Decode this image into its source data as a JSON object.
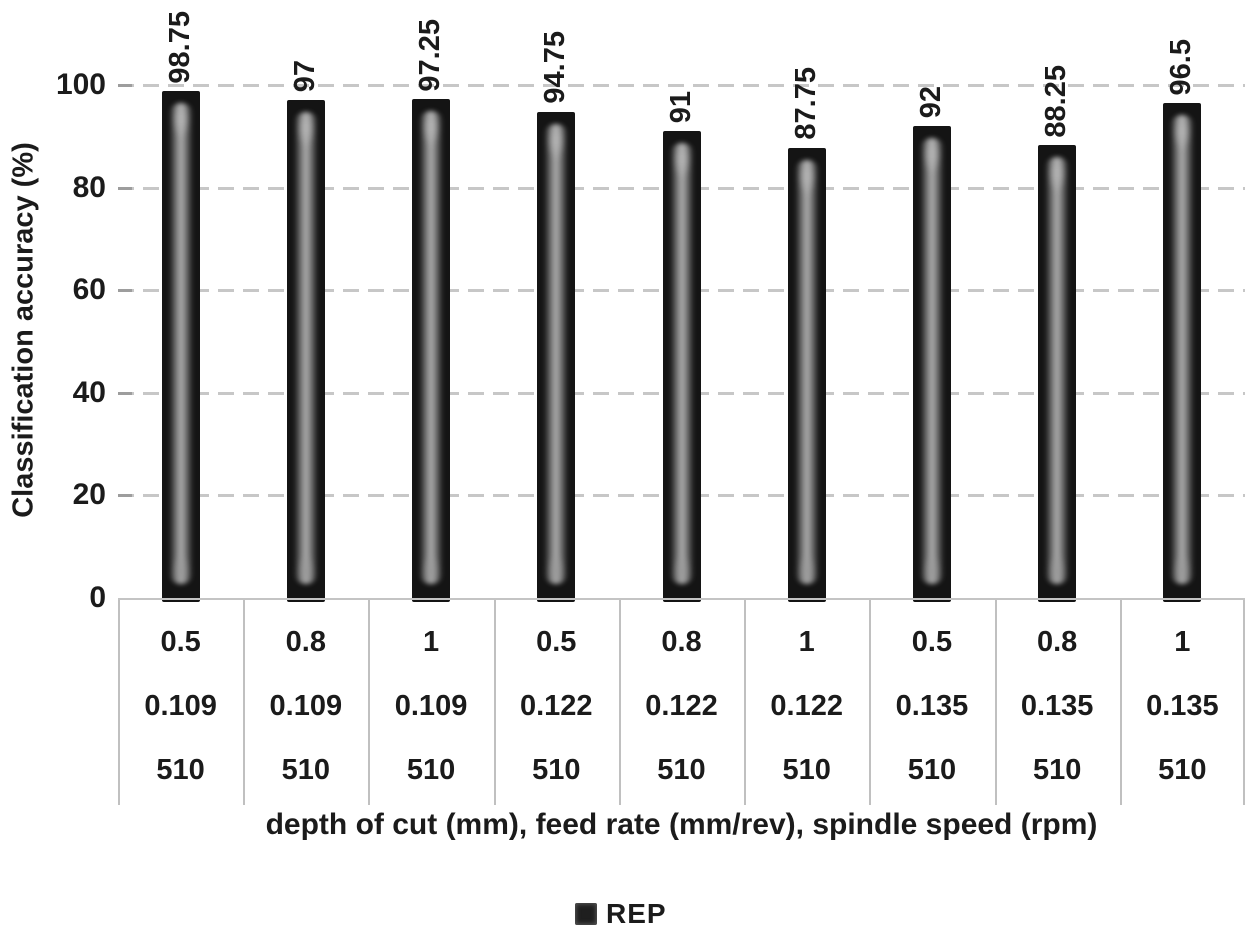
{
  "chart_data": {
    "type": "bar",
    "title": "",
    "ylabel": "Classification accuracy (%)",
    "xlabel": "depth of cut (mm), feed rate (mm/rev), spindle speed (rpm)",
    "ylim": [
      0,
      100
    ],
    "yticks": [
      0,
      20,
      40,
      60,
      80,
      100
    ],
    "grid": "horizontal-dashed",
    "legend_position": "bottom-center",
    "categories": [
      {
        "depth_of_cut": "0.5",
        "feed_rate": "0.109",
        "spindle_speed": "510"
      },
      {
        "depth_of_cut": "0.8",
        "feed_rate": "0.109",
        "spindle_speed": "510"
      },
      {
        "depth_of_cut": "1",
        "feed_rate": "0.109",
        "spindle_speed": "510"
      },
      {
        "depth_of_cut": "0.5",
        "feed_rate": "0.122",
        "spindle_speed": "510"
      },
      {
        "depth_of_cut": "0.8",
        "feed_rate": "0.122",
        "spindle_speed": "510"
      },
      {
        "depth_of_cut": "1",
        "feed_rate": "0.122",
        "spindle_speed": "510"
      },
      {
        "depth_of_cut": "0.5",
        "feed_rate": "0.135",
        "spindle_speed": "510"
      },
      {
        "depth_of_cut": "0.8",
        "feed_rate": "0.135",
        "spindle_speed": "510"
      },
      {
        "depth_of_cut": "1",
        "feed_rate": "0.135",
        "spindle_speed": "510"
      }
    ],
    "series": [
      {
        "name": "REP",
        "values": [
          98.75,
          97,
          97.25,
          94.75,
          91,
          87.75,
          92,
          88.25,
          96.5
        ],
        "data_labels": [
          "98.75",
          "97",
          "97.25",
          "94.75",
          "91",
          "87.75",
          "92",
          "88.25",
          "96.5"
        ]
      }
    ],
    "legend": {
      "entries": [
        {
          "label": "REP",
          "swatch_color": "#1f1f1f"
        }
      ]
    }
  },
  "colors": {
    "background": "#ffffff",
    "text": "#1b1b1b",
    "gridline": "#c7c7c7",
    "table_line": "#c0c0c0",
    "bar_dark": "#141414",
    "bar_highlight": "#a8a8a8"
  }
}
